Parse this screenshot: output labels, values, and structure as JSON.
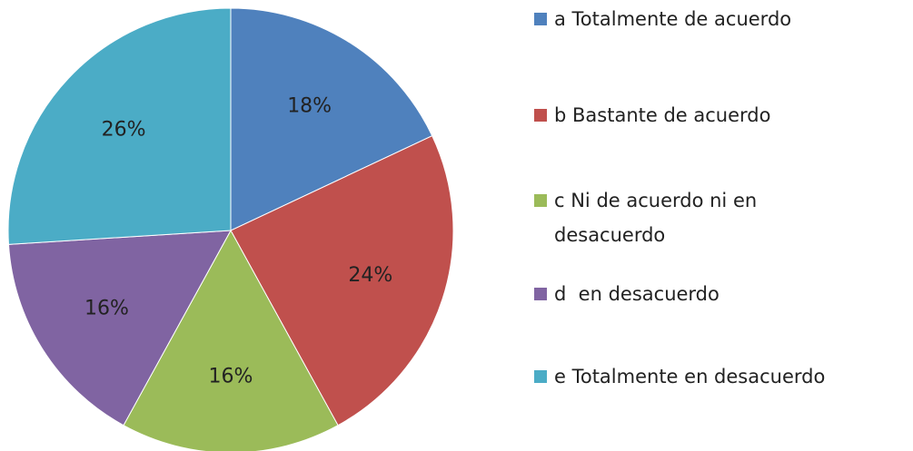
{
  "chart_data": {
    "type": "pie",
    "categories": [
      "a Totalmente de acuerdo",
      "b Bastante de acuerdo",
      "c Ni de acuerdo ni en desacuerdo",
      "d  en desacuerdo",
      "e Totalmente en desacuerdo"
    ],
    "values": [
      18,
      24,
      16,
      16,
      26
    ],
    "value_labels": [
      "18%",
      "24%",
      "16%",
      "16%",
      "26%"
    ],
    "colors": [
      "#4f81bd",
      "#c0504d",
      "#9bbb59",
      "#8064a2",
      "#4bacc6"
    ],
    "legend": "right"
  }
}
